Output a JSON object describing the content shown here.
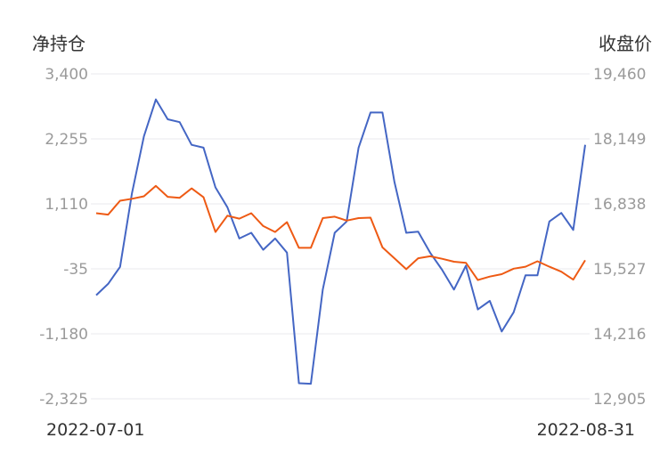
{
  "chart_data": {
    "type": "line",
    "left_axis_title": "净持仓",
    "right_axis_title": "收盘价",
    "left_ticks": [
      "3,400",
      "2,255",
      "1,110",
      "-35",
      "-1,180",
      "-2,325"
    ],
    "right_ticks": [
      "19,460",
      "18,149",
      "16,838",
      "15,527",
      "14,216",
      "12,905"
    ],
    "ylim_left": [
      -2325,
      3400
    ],
    "ylim_right": [
      12905,
      19460
    ],
    "x_start_label": "2022-07-01",
    "x_end_label": "2022-08-31",
    "grid": true,
    "series": [
      {
        "axis": "left",
        "color": "#4466c4",
        "values": [
          -500,
          -300,
          0,
          1300,
          2300,
          2950,
          2600,
          2550,
          2150,
          2100,
          1400,
          1050,
          500,
          600,
          300,
          500,
          250,
          -2050,
          -2060,
          -400,
          600,
          800,
          2100,
          2720,
          2720,
          1500,
          600,
          620,
          250,
          -50,
          -400,
          20,
          -750,
          -600,
          -1140,
          -800,
          -150,
          -150,
          800,
          950,
          650,
          2150
        ]
      },
      {
        "axis": "right",
        "color": "#ee5a14",
        "values": [
          16650,
          16620,
          16900,
          16940,
          16990,
          17200,
          16980,
          16960,
          17150,
          16970,
          16270,
          16600,
          16540,
          16650,
          16390,
          16270,
          16470,
          15950,
          15950,
          16550,
          16580,
          16500,
          16550,
          16560,
          15960,
          15740,
          15520,
          15740,
          15780,
          15730,
          15670,
          15650,
          15300,
          15370,
          15420,
          15530,
          15570,
          15680,
          15570,
          15470,
          15310,
          15700
        ]
      }
    ]
  }
}
